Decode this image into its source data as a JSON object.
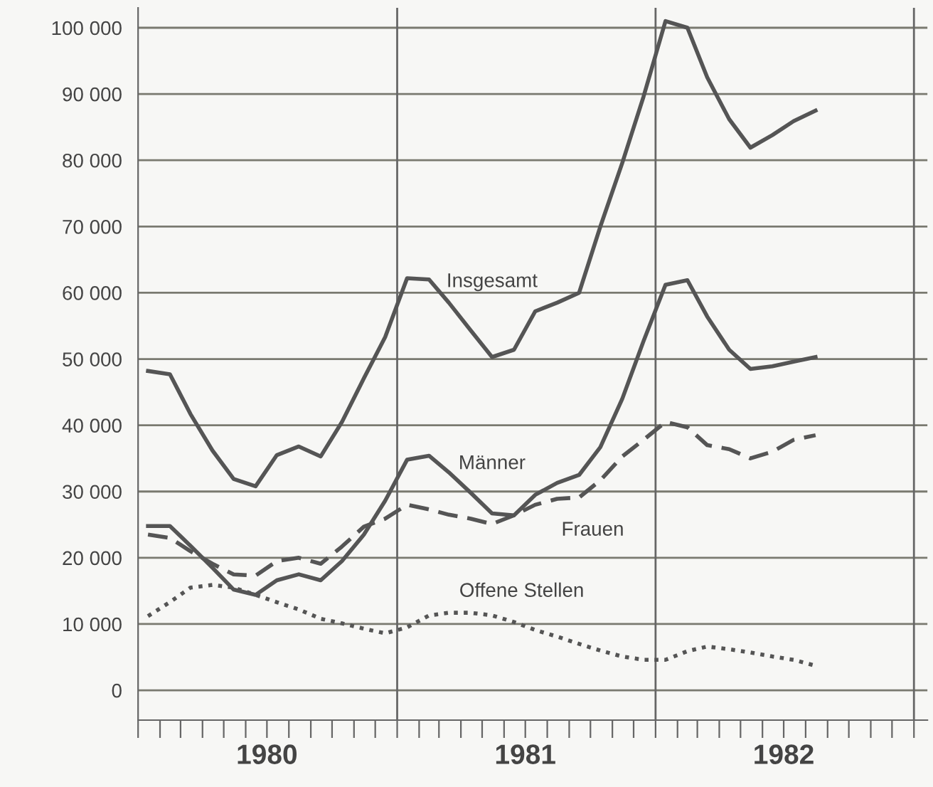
{
  "chart_data": {
    "type": "line",
    "x": [
      "1980-01-15",
      "1980-02-15",
      "1980-03-15",
      "1980-04-15",
      "1980-05-15",
      "1980-06-15",
      "1980-07-15",
      "1980-08-15",
      "1980-09-15",
      "1980-10-15",
      "1980-11-15",
      "1980-12-15",
      "1981-01-15",
      "1981-02-15",
      "1981-03-15",
      "1981-04-15",
      "1981-05-15",
      "1981-06-15",
      "1981-07-15",
      "1981-08-15",
      "1981-09-15",
      "1981-10-15",
      "1981-11-15",
      "1981-12-15",
      "1982-01-15",
      "1982-02-15",
      "1982-03-15",
      "1982-04-15",
      "1982-05-15",
      "1982-06-15",
      "1982-07-15",
      "1982-08-15"
    ],
    "series": [
      {
        "name": "Insgesamt",
        "color": "#555555",
        "line_style": "solid",
        "values": [
          48200,
          47700,
          41700,
          36200,
          31900,
          30800,
          35500,
          36800,
          35300,
          40500,
          47100,
          53300,
          62200,
          62000,
          58500,
          54300,
          50300,
          51400,
          57200,
          58500,
          60000,
          70000,
          79600,
          89600,
          101000,
          100000,
          92500,
          86200,
          81900,
          83800,
          85900,
          87500
        ]
      },
      {
        "name": "Männer",
        "color": "#555555",
        "line_style": "solid",
        "values": [
          24800,
          24800,
          21800,
          18500,
          15200,
          14400,
          16600,
          17500,
          16600,
          19500,
          23500,
          28600,
          34800,
          35400,
          32900,
          29800,
          26700,
          26400,
          29500,
          31300,
          32500,
          36700,
          44000,
          52700,
          61200,
          61900,
          56400,
          51400,
          48500,
          48900,
          49600,
          50300
        ]
      },
      {
        "name": "Frauen",
        "color": "#555555",
        "line_style": "dashed",
        "values": [
          23500,
          23000,
          21000,
          19100,
          17500,
          17300,
          19500,
          20000,
          19100,
          21700,
          24700,
          25900,
          28000,
          27300,
          26500,
          25900,
          25100,
          26400,
          28000,
          28900,
          29100,
          31700,
          35300,
          37800,
          40500,
          39700,
          37000,
          36400,
          35000,
          36000,
          37800,
          38500
        ]
      },
      {
        "name": "Offene Stellen",
        "color": "#555555",
        "line_style": "dotted",
        "values": [
          11200,
          13300,
          15500,
          15900,
          15500,
          14400,
          13300,
          12200,
          10800,
          10100,
          9300,
          8600,
          9500,
          11300,
          11700,
          11700,
          11300,
          10300,
          9100,
          8100,
          7000,
          6000,
          5100,
          4600,
          4600,
          5900,
          6600,
          6200,
          5700,
          5100,
          4600,
          3700
        ]
      }
    ],
    "xlim": [
      "1980-01-01",
      "1983-01-20"
    ],
    "xticks": [
      {
        "value": "1980-01-01",
        "label": null
      },
      {
        "value": "1980-02-01",
        "label": null
      },
      {
        "value": "1980-03-01",
        "label": null
      },
      {
        "value": "1980-04-01",
        "label": null
      },
      {
        "value": "1980-05-01",
        "label": null
      },
      {
        "value": "1980-06-01",
        "label": null
      },
      {
        "value": "1980-07-01",
        "label": "1980"
      },
      {
        "value": "1980-08-01",
        "label": null
      },
      {
        "value": "1980-09-01",
        "label": null
      },
      {
        "value": "1980-10-01",
        "label": null
      },
      {
        "value": "1980-11-01",
        "label": null
      },
      {
        "value": "1980-12-01",
        "label": null
      },
      {
        "value": "1981-01-01",
        "label": null
      },
      {
        "value": "1981-02-01",
        "label": null
      },
      {
        "value": "1981-03-01",
        "label": null
      },
      {
        "value": "1981-04-01",
        "label": null
      },
      {
        "value": "1981-05-01",
        "label": null
      },
      {
        "value": "1981-06-01",
        "label": null
      },
      {
        "value": "1981-07-01",
        "label": "1981"
      },
      {
        "value": "1981-08-01",
        "label": null
      },
      {
        "value": "1981-09-01",
        "label": null
      },
      {
        "value": "1981-10-01",
        "label": null
      },
      {
        "value": "1981-11-01",
        "label": null
      },
      {
        "value": "1981-12-01",
        "label": null
      },
      {
        "value": "1982-01-01",
        "label": null
      },
      {
        "value": "1982-02-01",
        "label": null
      },
      {
        "value": "1982-03-01",
        "label": null
      },
      {
        "value": "1982-04-01",
        "label": null
      },
      {
        "value": "1982-05-01",
        "label": null
      },
      {
        "value": "1982-06-01",
        "label": null
      },
      {
        "value": "1982-07-01",
        "label": "1982"
      },
      {
        "value": "1982-08-01",
        "label": null
      },
      {
        "value": "1982-09-01",
        "label": null
      },
      {
        "value": "1982-10-01",
        "label": null
      },
      {
        "value": "1982-11-01",
        "label": null
      },
      {
        "value": "1982-12-01",
        "label": null
      },
      {
        "value": "1983-01-01",
        "label": null
      }
    ],
    "ylim": [
      -4500,
      103000
    ],
    "yticks": [
      0,
      {
        "value": 10000,
        "label": "10 000"
      },
      {
        "value": 20000,
        "label": "20 000"
      },
      {
        "value": 30000,
        "label": "30 000"
      },
      {
        "value": 40000,
        "label": "40 000"
      },
      {
        "value": 50000,
        "label": "50 000"
      },
      {
        "value": 60000,
        "label": "60 000"
      },
      {
        "value": 70000,
        "label": "70 000"
      },
      {
        "value": 80000,
        "label": "80 000"
      },
      {
        "value": 90000,
        "label": "90 000"
      },
      {
        "value": 100000,
        "label": "100 000"
      }
    ],
    "grid": "y",
    "ref_lines": [
      {
        "axis": "x",
        "value": "1981-01-01",
        "label": null,
        "color": "#666666"
      },
      {
        "axis": "x",
        "value": "1982-01-01",
        "label": null,
        "color": "#666666"
      },
      {
        "axis": "x",
        "value": "1983-01-01",
        "label": null,
        "color": "#666666"
      }
    ],
    "legend": false
  }
}
